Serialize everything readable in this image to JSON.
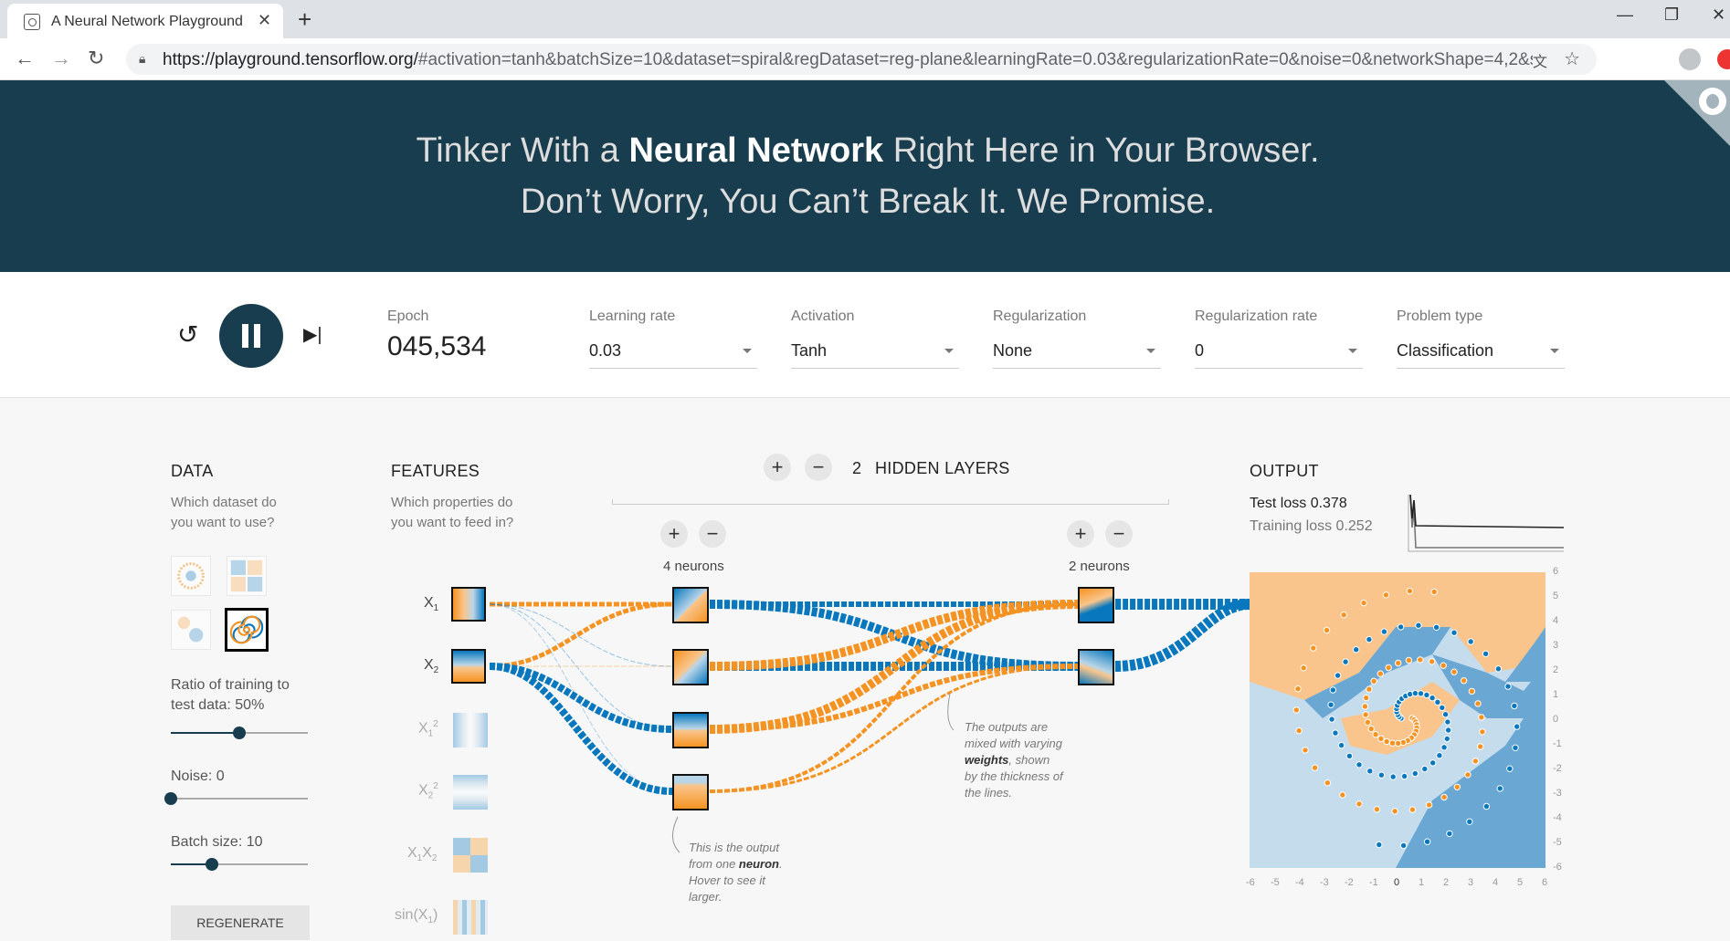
{
  "browser": {
    "tab_title": "A Neural Network Playground",
    "tab_close": "✕",
    "new_tab": "+",
    "url_host": "https://playground.tensorflow.org/",
    "url_rest": "#activation=tanh&batchSize=10&dataset=spiral&regDataset=reg-plane&learningRate=0.03&regularizationRate=0&noise=0&networkShape=4,2&s...",
    "icons": [
      "back-arrow-icon",
      "forward-arrow-icon",
      "reload-icon",
      "lock-icon",
      "translate-icon",
      "star-icon",
      "profile-icon"
    ]
  },
  "header": {
    "line1_pre": "Tinker With a ",
    "line1_bold": "Neural Network",
    "line1_post": " Right Here in Your Browser.",
    "line2": "Don’t Worry, You Can’t Break It. We Promise."
  },
  "controls": {
    "epoch_label": "Epoch",
    "epoch_value": "045,534",
    "learning_rate": {
      "label": "Learning rate",
      "value": "0.03"
    },
    "activation": {
      "label": "Activation",
      "value": "Tanh"
    },
    "regularization": {
      "label": "Regularization",
      "value": "None"
    },
    "regularization_rate": {
      "label": "Regularization rate",
      "value": "0"
    },
    "problem_type": {
      "label": "Problem type",
      "value": "Classification"
    }
  },
  "data_panel": {
    "title": "DATA",
    "desc1": "Which dataset do",
    "desc2": "you want to use?",
    "ratio_label1": "Ratio of training to",
    "ratio_label2": "test data:  50%",
    "ratio_value": 0.5,
    "noise_label": "Noise:  0",
    "noise_value": 0,
    "batch_label": "Batch size:  10",
    "batch_value": 0.3,
    "regenerate": "REGENERATE"
  },
  "features_panel": {
    "title": "FEATURES",
    "desc1": "Which properties do",
    "desc2": "you want to feed in?",
    "items": [
      {
        "label": "X",
        "sub": "1",
        "sup": "",
        "active": true
      },
      {
        "label": "X",
        "sub": "2",
        "sup": "",
        "active": true
      },
      {
        "label": "X",
        "sub": "1",
        "sup": "2",
        "active": false
      },
      {
        "label": "X",
        "sub": "2",
        "sup": "2",
        "active": false
      },
      {
        "label": "X",
        "sub": "1",
        "sup": "",
        "label2": "X",
        "sub2": "2",
        "active": false
      },
      {
        "label": "sin(X",
        "sub": "1",
        "sup": "",
        "tail": ")",
        "active": false
      }
    ]
  },
  "network": {
    "hidden_layers_count": "2",
    "hidden_layers_label": "HIDDEN LAYERS",
    "layer1_label": "4 neurons",
    "layer2_label": "2 neurons",
    "plus": "+",
    "minus": "−"
  },
  "notes": {
    "weights_pre": "The outputs are",
    "weights_l2": "mixed with varying",
    "weights_bold": "weights",
    "weights_l3": ", shown",
    "weights_l4": "by the thickness of",
    "weights_l5": "the lines.",
    "neuron_l1": "This is the output",
    "neuron_pre": "from one ",
    "neuron_bold": "neuron",
    "neuron_post": ".",
    "neuron_l3": "Hover to see it",
    "neuron_l4": "larger."
  },
  "output_panel": {
    "title": "OUTPUT",
    "test_loss": "Test loss 0.378",
    "training_loss": "Training loss 0.252",
    "y_ticks": [
      "6",
      "5",
      "4",
      "3",
      "2",
      "1",
      "0",
      "-1",
      "-2",
      "-3",
      "-4",
      "-5",
      "-6"
    ],
    "x_ticks": [
      "-6",
      "-5",
      "-4",
      "-3",
      "-2",
      "-1",
      "0",
      "1",
      "2",
      "3",
      "4",
      "5",
      "6"
    ]
  },
  "colors": {
    "orange": "#f59322",
    "blue": "#0877bd",
    "dark": "#183d4e",
    "light_orange": "#f9c58c",
    "light_blue": "#b9d5e8"
  }
}
